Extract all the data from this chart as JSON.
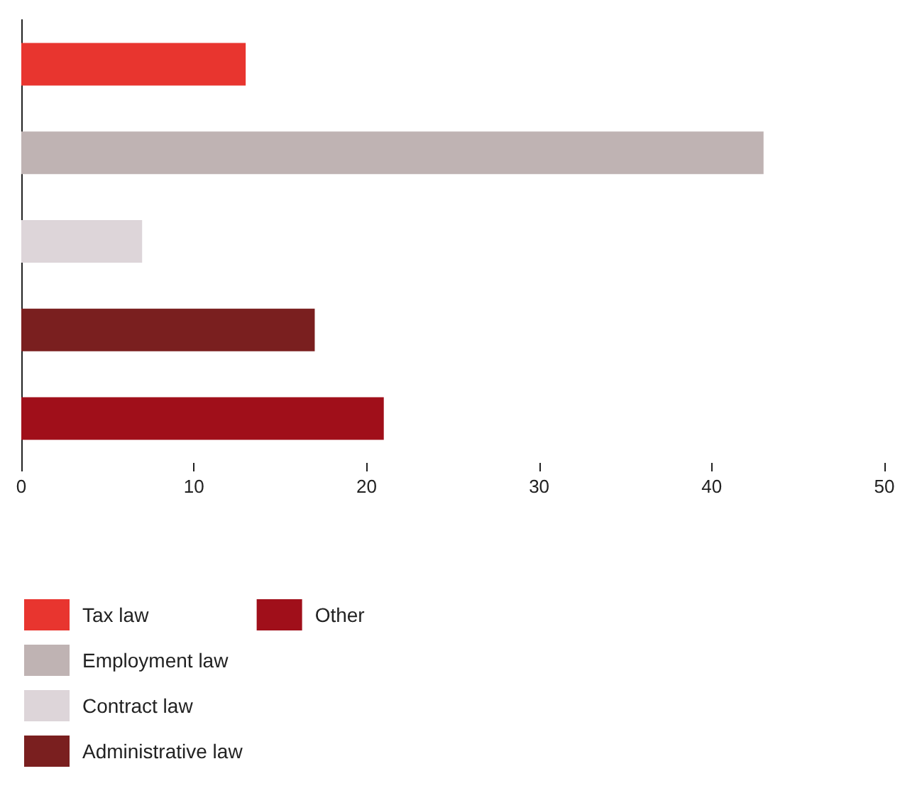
{
  "chart_data": {
    "type": "bar",
    "orientation": "horizontal",
    "categories": [
      null,
      null,
      null,
      null,
      null
    ],
    "series": [
      {
        "name": "Tax law",
        "color": "#e8352f",
        "values": [
          13,
          null,
          null,
          null,
          null
        ]
      },
      {
        "name": "Employment law",
        "color": "#bfb3b3",
        "values": [
          null,
          43,
          null,
          null,
          null
        ]
      },
      {
        "name": "Contract law",
        "color": "#ddd5d9",
        "values": [
          null,
          null,
          7,
          null,
          null
        ]
      },
      {
        "name": "Administrative law",
        "color": "#7a1f1f",
        "values": [
          null,
          null,
          null,
          17,
          null
        ]
      },
      {
        "name": "Other",
        "color": "#a00f1a",
        "values": [
          null,
          null,
          null,
          null,
          21
        ]
      }
    ],
    "xlim": [
      0,
      50
    ],
    "xticks": [
      0,
      10,
      20,
      30,
      40,
      50
    ],
    "grid": false,
    "legend": "bottom"
  }
}
